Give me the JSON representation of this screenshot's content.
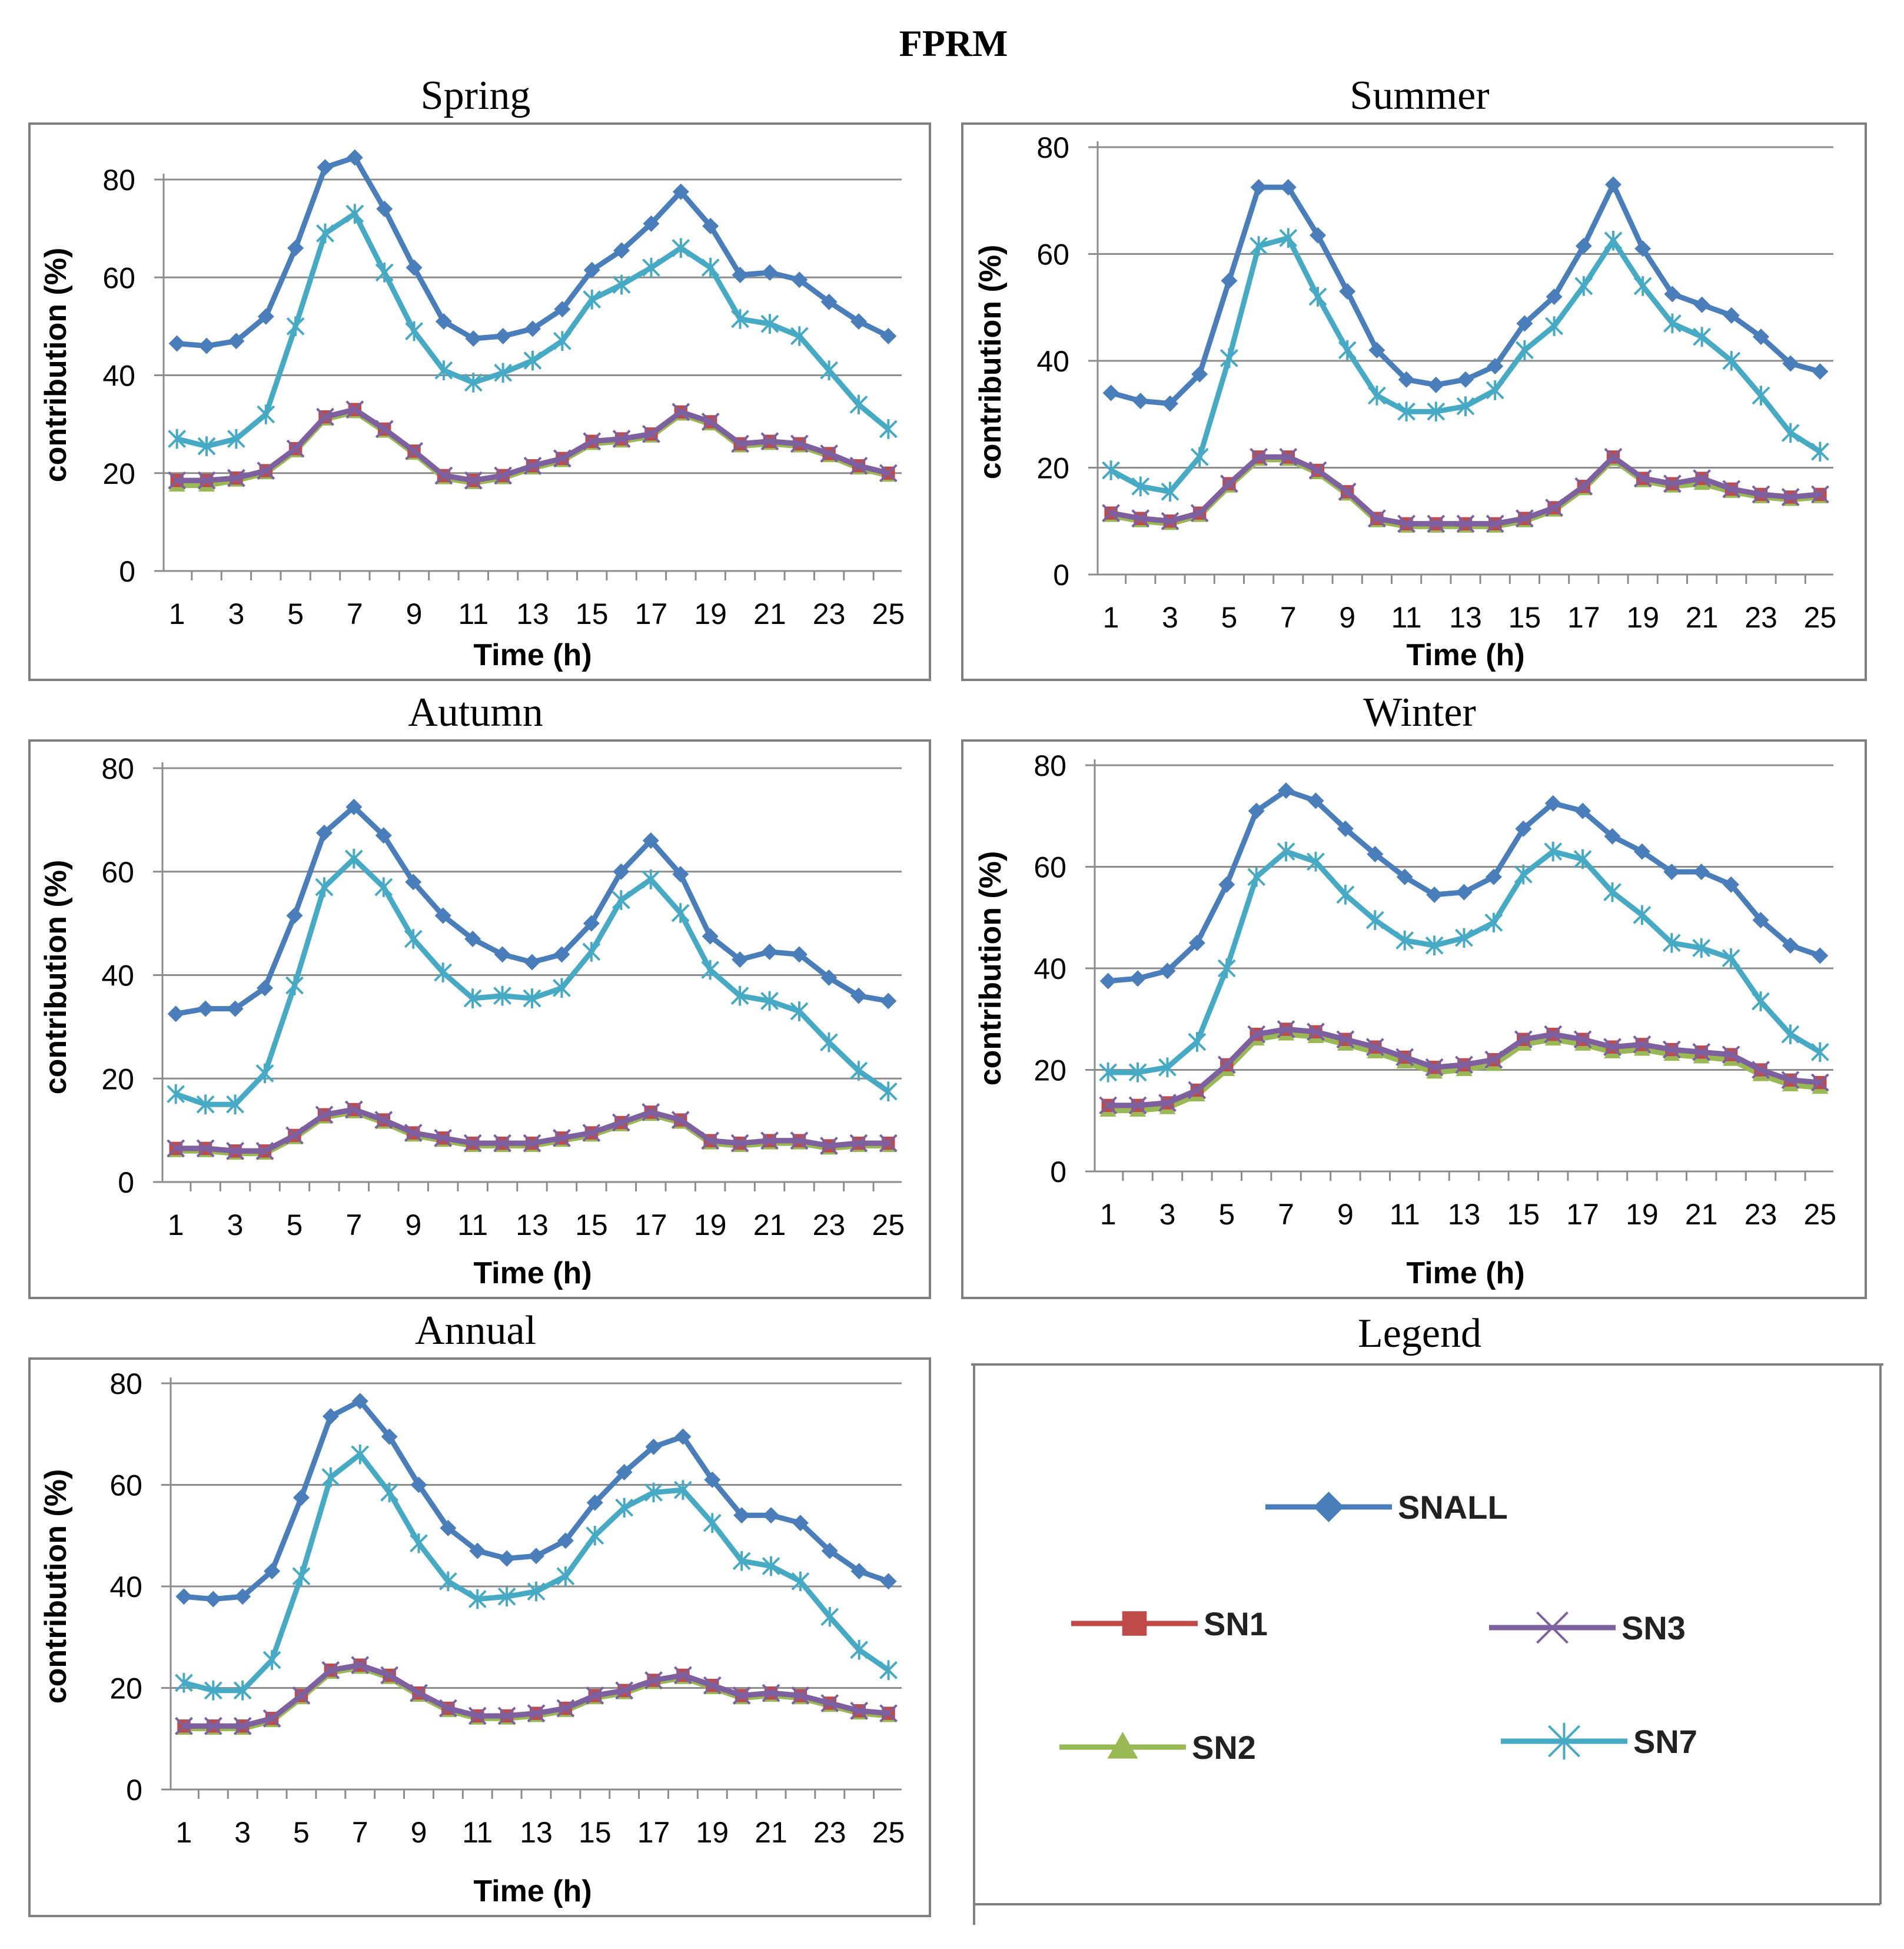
{
  "figure": {
    "title": "FPRM",
    "legend_title": "Legend"
  },
  "colors": {
    "SNALL": "#4a7ebb",
    "SN1": "#be4b48",
    "SN2": "#98b954",
    "SN3": "#7d60a0",
    "SN7": "#46aac5",
    "grid": "#8c8c8c",
    "axis": "#8c8c8c",
    "frame": "#7f7f7f"
  },
  "legend": {
    "entries": [
      {
        "key": "SNALL",
        "label": "SNALL",
        "marker": "diamond-icon"
      },
      {
        "key": "SN1",
        "label": "SN1",
        "marker": "square-icon"
      },
      {
        "key": "SN3",
        "label": "SN3",
        "marker": "cross-icon"
      },
      {
        "key": "SN2",
        "label": "SN2",
        "marker": "triangle-icon"
      },
      {
        "key": "SN7",
        "label": "SN7",
        "marker": "star-icon"
      }
    ]
  },
  "chart_data": [
    {
      "type": "line",
      "title": "Spring",
      "xlabel": "Time (h)",
      "ylabel": "contribution (%)",
      "ylim": [
        0,
        80
      ],
      "yticks": [
        0,
        20,
        40,
        60,
        80
      ],
      "xticks": [
        1,
        3,
        5,
        7,
        9,
        11,
        13,
        15,
        17,
        19,
        21,
        23,
        25
      ],
      "grid": true,
      "x": [
        1,
        2,
        3,
        4,
        5,
        6,
        7,
        8,
        9,
        10,
        11,
        12,
        13,
        14,
        15,
        16,
        17,
        18,
        19,
        20,
        21,
        22,
        23,
        24,
        25
      ],
      "series": [
        {
          "name": "SNALL",
          "values": [
            46.5,
            46,
            47,
            52,
            66,
            82.5,
            84.5,
            74,
            62,
            51,
            47.5,
            48,
            49.5,
            53.5,
            61.5,
            65.5,
            71,
            77.5,
            70.5,
            60.5,
            61,
            59.5,
            55,
            51,
            48
          ]
        },
        {
          "name": "SN7",
          "values": [
            27,
            25.5,
            27,
            32,
            50,
            69,
            73,
            61,
            49,
            41,
            38.5,
            40.5,
            43,
            47,
            55.5,
            58.5,
            62,
            66,
            62,
            51.5,
            50.5,
            48,
            41,
            34,
            29
          ]
        },
        {
          "name": "SN1",
          "values": [
            18.5,
            18.5,
            19,
            20.5,
            25,
            31.5,
            33,
            29,
            24.5,
            19.5,
            18.5,
            19.5,
            21.5,
            23,
            26.5,
            27,
            28,
            32.5,
            30.5,
            26,
            26.5,
            26,
            24,
            21.5,
            20
          ]
        },
        {
          "name": "SN3",
          "values": [
            18.5,
            18.5,
            19,
            20.5,
            25,
            31.5,
            33,
            29,
            24.5,
            19.5,
            18.5,
            19.5,
            21.5,
            23,
            26.5,
            27,
            28,
            32.5,
            30.5,
            26,
            26.5,
            26,
            24,
            21.5,
            20
          ]
        },
        {
          "name": "SN2",
          "values": [
            17.5,
            17.5,
            18.5,
            20,
            24.5,
            31,
            32.5,
            28.5,
            24,
            19,
            18,
            19,
            21,
            22.5,
            26,
            26.5,
            27.5,
            32,
            30,
            25.5,
            26,
            25.5,
            23.5,
            21,
            19.5
          ]
        }
      ]
    },
    {
      "type": "line",
      "title": "Summer",
      "xlabel": "Time (h)",
      "ylabel": "contribution (%)",
      "ylim": [
        0,
        80
      ],
      "yticks": [
        0,
        20,
        40,
        60,
        80
      ],
      "xticks": [
        1,
        3,
        5,
        7,
        9,
        11,
        13,
        15,
        17,
        19,
        21,
        23,
        25
      ],
      "grid": true,
      "x": [
        1,
        2,
        3,
        4,
        5,
        6,
        7,
        8,
        9,
        10,
        11,
        12,
        13,
        14,
        15,
        16,
        17,
        18,
        19,
        20,
        21,
        22,
        23,
        24,
        25
      ],
      "series": [
        {
          "name": "SNALL",
          "values": [
            34,
            32.5,
            32,
            37.5,
            55,
            72.5,
            72.5,
            63.5,
            53,
            42,
            36.5,
            35.5,
            36.5,
            39,
            47,
            52,
            61.5,
            73,
            61,
            52.5,
            50.5,
            48.5,
            44.5,
            39.5,
            38
          ]
        },
        {
          "name": "SN7",
          "values": [
            19.5,
            16.5,
            15.5,
            22,
            40.5,
            61.5,
            63,
            52,
            42,
            33.5,
            30.5,
            30.5,
            31.5,
            34.5,
            42,
            46.5,
            54,
            62.5,
            54,
            47,
            44.5,
            40,
            33.5,
            26.5,
            23
          ]
        },
        {
          "name": "SN1",
          "values": [
            11.5,
            10.5,
            10,
            11.5,
            17,
            22,
            22,
            19.5,
            15.5,
            10.5,
            9.5,
            9.5,
            9.5,
            9.5,
            10.5,
            12.5,
            16.5,
            22,
            18,
            17,
            18,
            16,
            15,
            14.5,
            15
          ]
        },
        {
          "name": "SN3",
          "values": [
            11.5,
            10.5,
            10,
            11.5,
            17,
            22,
            22,
            19.5,
            15.5,
            10.5,
            9.5,
            9.5,
            9.5,
            9.5,
            10.5,
            12.5,
            16.5,
            22,
            18,
            17,
            18,
            16,
            15,
            14.5,
            15
          ]
        },
        {
          "name": "SN2",
          "values": [
            11,
            10,
            9.5,
            11,
            16.5,
            21.5,
            21.5,
            19,
            15,
            10,
            9,
            9,
            9,
            9,
            10,
            12,
            16,
            21.5,
            17.5,
            16.5,
            17,
            15.5,
            14.5,
            14,
            14.5
          ]
        }
      ]
    },
    {
      "type": "line",
      "title": "Autumn",
      "xlabel": "Time (h)",
      "ylabel": "contribution (%)",
      "ylim": [
        0,
        80
      ],
      "yticks": [
        0,
        20,
        40,
        60,
        80
      ],
      "xticks": [
        1,
        3,
        5,
        7,
        9,
        11,
        13,
        15,
        17,
        19,
        21,
        23,
        25
      ],
      "grid": true,
      "x": [
        1,
        2,
        3,
        4,
        5,
        6,
        7,
        8,
        9,
        10,
        11,
        12,
        13,
        14,
        15,
        16,
        17,
        18,
        19,
        20,
        21,
        22,
        23,
        24,
        25
      ],
      "series": [
        {
          "name": "SNALL",
          "values": [
            32.5,
            33.5,
            33.5,
            37.5,
            51.5,
            67.5,
            72.5,
            67,
            58,
            51.5,
            47,
            44,
            42.5,
            44,
            50,
            60,
            66,
            59.5,
            47.5,
            43,
            44.5,
            44,
            39.5,
            36,
            35
          ]
        },
        {
          "name": "SN7",
          "values": [
            17,
            15,
            15,
            21,
            38,
            57,
            62.5,
            57,
            47,
            40.5,
            35.5,
            36,
            35.5,
            37.5,
            44.5,
            54.5,
            58.5,
            52,
            41,
            36,
            35,
            33,
            27,
            21.5,
            17.5
          ]
        },
        {
          "name": "SN1",
          "values": [
            6.5,
            6.5,
            6,
            6,
            9,
            13,
            14,
            12,
            9.5,
            8.5,
            7.5,
            7.5,
            7.5,
            8.5,
            9.5,
            11.5,
            13.5,
            12,
            8,
            7.5,
            8,
            8,
            7,
            7.5,
            7.5
          ]
        },
        {
          "name": "SN3",
          "values": [
            6.5,
            6.5,
            6,
            6,
            9,
            13,
            14,
            12,
            9.5,
            8.5,
            7.5,
            7.5,
            7.5,
            8.5,
            9.5,
            11.5,
            13.5,
            12,
            8,
            7.5,
            8,
            8,
            7,
            7.5,
            7.5
          ]
        },
        {
          "name": "SN2",
          "values": [
            6,
            6,
            5.5,
            5.5,
            8.5,
            12.5,
            13.5,
            11.5,
            9,
            8,
            7,
            7,
            7,
            8,
            9,
            11,
            13,
            11.5,
            7.5,
            7,
            7.5,
            7.5,
            6.5,
            7,
            7
          ]
        }
      ]
    },
    {
      "type": "line",
      "title": "Winter",
      "xlabel": "Time (h)",
      "ylabel": "contribution (%)",
      "ylim": [
        0,
        80
      ],
      "yticks": [
        0,
        20,
        40,
        60,
        80
      ],
      "xticks": [
        1,
        3,
        5,
        7,
        9,
        11,
        13,
        15,
        17,
        19,
        21,
        23,
        25
      ],
      "grid": true,
      "x": [
        1,
        2,
        3,
        4,
        5,
        6,
        7,
        8,
        9,
        10,
        11,
        12,
        13,
        14,
        15,
        16,
        17,
        18,
        19,
        20,
        21,
        22,
        23,
        24,
        25
      ],
      "series": [
        {
          "name": "SNALL",
          "values": [
            37.5,
            38,
            39.5,
            45,
            56.5,
            71,
            75,
            73,
            67.5,
            62.5,
            58,
            54.5,
            55,
            58,
            67.5,
            72.5,
            71,
            66,
            63,
            59,
            59,
            56.5,
            49.5,
            44.5,
            42.5
          ]
        },
        {
          "name": "SN7",
          "values": [
            19.5,
            19.5,
            20.5,
            25.5,
            40,
            58,
            63,
            61,
            54.5,
            49.5,
            45.5,
            44.5,
            46,
            49,
            58.5,
            63,
            61.5,
            55,
            50.5,
            45,
            44,
            42,
            33.5,
            27,
            23.5
          ]
        },
        {
          "name": "SN1",
          "values": [
            13,
            13,
            13.5,
            16,
            21,
            27,
            28,
            27.5,
            26,
            24.5,
            22.5,
            20.5,
            21,
            22,
            26,
            27,
            26,
            24.5,
            25,
            24,
            23.5,
            23,
            20,
            18,
            17.5
          ]
        },
        {
          "name": "SN3",
          "values": [
            13,
            13,
            13.5,
            16,
            21,
            27,
            28,
            27.5,
            26,
            24.5,
            22.5,
            20.5,
            21,
            22,
            26,
            27,
            26,
            24.5,
            25,
            24,
            23.5,
            23,
            20,
            18,
            17.5
          ]
        },
        {
          "name": "SN2",
          "values": [
            12,
            12,
            12.5,
            15,
            20,
            26,
            27,
            26.5,
            25,
            23.5,
            21.5,
            19.5,
            20,
            21,
            25,
            26,
            25,
            23.5,
            24,
            23,
            22.5,
            22,
            19,
            17,
            16.5
          ]
        }
      ]
    },
    {
      "type": "line",
      "title": "Annual",
      "xlabel": "Time (h)",
      "ylabel": "contribution (%)",
      "ylim": [
        0,
        80
      ],
      "yticks": [
        0,
        20,
        40,
        60,
        80
      ],
      "xticks": [
        1,
        3,
        5,
        7,
        9,
        11,
        13,
        15,
        17,
        19,
        21,
        23,
        25
      ],
      "grid": true,
      "x": [
        1,
        2,
        3,
        4,
        5,
        6,
        7,
        8,
        9,
        10,
        11,
        12,
        13,
        14,
        15,
        16,
        17,
        18,
        19,
        20,
        21,
        22,
        23,
        24,
        25
      ],
      "series": [
        {
          "name": "SNALL",
          "values": [
            38,
            37.5,
            38,
            43,
            57.5,
            73.5,
            76.5,
            69.5,
            60,
            51.5,
            47,
            45.5,
            46,
            49,
            56.5,
            62.5,
            67.5,
            69.5,
            61,
            54,
            54,
            52.5,
            47,
            43,
            41
          ]
        },
        {
          "name": "SN7",
          "values": [
            21,
            19.5,
            19.5,
            25.5,
            42,
            61.5,
            66,
            58.5,
            48.5,
            41,
            37.5,
            38,
            39,
            42,
            50,
            55.5,
            58.5,
            59,
            52.5,
            45,
            44,
            41,
            34,
            27.5,
            23.5
          ]
        },
        {
          "name": "SN1",
          "values": [
            12.5,
            12.5,
            12.5,
            14,
            18.5,
            23.5,
            24.5,
            22.5,
            19,
            16,
            14.5,
            14.5,
            15,
            16,
            18.5,
            19.5,
            21.5,
            22.5,
            20.5,
            18.5,
            19,
            18.5,
            17,
            15.5,
            15
          ]
        },
        {
          "name": "SN3",
          "values": [
            12.5,
            12.5,
            12.5,
            14,
            18.5,
            23.5,
            24.5,
            22.5,
            19,
            16,
            14.5,
            14.5,
            15,
            16,
            18.5,
            19.5,
            21.5,
            22.5,
            20.5,
            18.5,
            19,
            18.5,
            17,
            15.5,
            15
          ]
        },
        {
          "name": "SN2",
          "values": [
            12,
            12,
            12,
            13.5,
            18,
            23,
            24,
            22,
            18.5,
            15.5,
            14,
            14,
            14.5,
            15.5,
            18,
            19,
            21,
            22,
            20,
            18,
            18.5,
            18,
            16.5,
            15,
            14.5
          ]
        }
      ]
    }
  ]
}
